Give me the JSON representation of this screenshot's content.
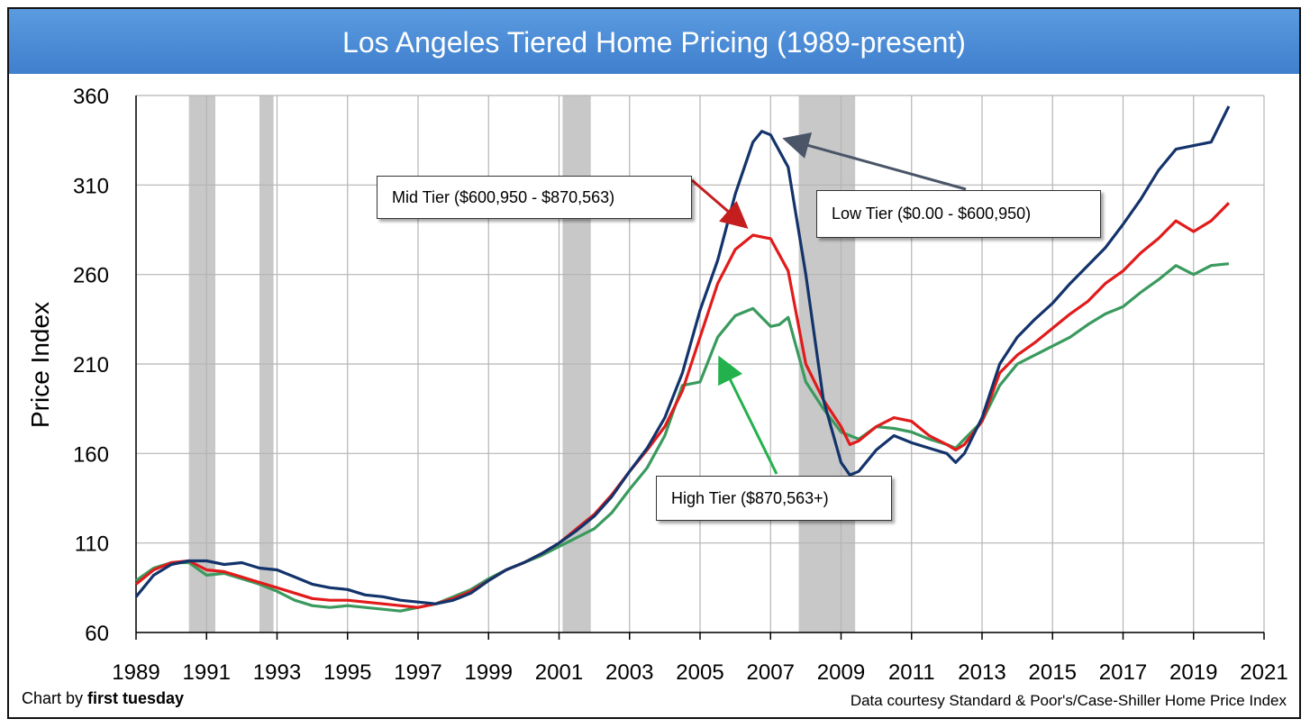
{
  "title": "Los Angeles Tiered Home Pricing (1989-present)",
  "footer": {
    "credit_prefix": "Chart by ",
    "credit_name": "first tuesday",
    "source": "Data courtesy Standard & Poor's/Case-Shiller Home Price Index"
  },
  "chart_data": {
    "type": "line",
    "title": "Los Angeles Tiered Home Pricing (1989-present)",
    "xlabel": "",
    "ylabel": "Price Index",
    "xlim": [
      1989,
      2021
    ],
    "ylim": [
      60,
      360
    ],
    "xticks": [
      "1989",
      "1991",
      "1993",
      "1995",
      "1997",
      "1999",
      "2001",
      "2003",
      "2005",
      "2007",
      "2009",
      "2011",
      "2013",
      "2015",
      "2017",
      "2019",
      "2021"
    ],
    "yticks": [
      "60",
      "110",
      "160",
      "210",
      "260",
      "310",
      "360"
    ],
    "grid": true,
    "recessions": [
      [
        1990.5,
        1991.25
      ],
      [
        1992.5,
        1992.9
      ],
      [
        2001.1,
        2001.9
      ],
      [
        2007.8,
        2009.4
      ]
    ],
    "series": [
      {
        "name": "Low Tier ($0.00 - $600,950)",
        "color": "#13336b",
        "x": [
          1989,
          1989.5,
          1990,
          1990.5,
          1991,
          1991.5,
          1992,
          1992.5,
          1993,
          1993.5,
          1994,
          1994.5,
          1995,
          1995.5,
          1996,
          1996.5,
          1997,
          1997.5,
          1998,
          1998.5,
          1999,
          1999.5,
          2000,
          2000.5,
          2001,
          2001.5,
          2002,
          2002.5,
          2003,
          2003.5,
          2004,
          2004.5,
          2005,
          2005.5,
          2006,
          2006.5,
          2006.75,
          2007,
          2007.5,
          2008,
          2008.5,
          2009,
          2009.25,
          2009.5,
          2010,
          2010.5,
          2011,
          2011.5,
          2012,
          2012.25,
          2012.5,
          2013,
          2013.5,
          2014,
          2014.5,
          2015,
          2015.5,
          2016,
          2016.5,
          2017,
          2017.5,
          2018,
          2018.5,
          2019,
          2019.5,
          2020
        ],
        "values": [
          80,
          92,
          98,
          100,
          100,
          98,
          99,
          96,
          95,
          91,
          87,
          85,
          84,
          81,
          80,
          78,
          77,
          76,
          78,
          82,
          89,
          95,
          99,
          104,
          110,
          117,
          125,
          136,
          150,
          163,
          180,
          205,
          240,
          268,
          305,
          334,
          340,
          338,
          320,
          260,
          190,
          155,
          148,
          150,
          162,
          170,
          166,
          163,
          160,
          155,
          160,
          180,
          210,
          225,
          235,
          244,
          255,
          265,
          275,
          288,
          302,
          318,
          330,
          332,
          334,
          354
        ]
      },
      {
        "name": "Mid Tier ($600,950 - $870,563)",
        "color": "#e11b1b",
        "x": [
          1989,
          1989.5,
          1990,
          1990.5,
          1991,
          1991.5,
          1992,
          1992.5,
          1993,
          1993.5,
          1994,
          1994.5,
          1995,
          1995.5,
          1996,
          1996.5,
          1997,
          1997.5,
          1998,
          1998.5,
          1999,
          1999.5,
          2000,
          2000.5,
          2001,
          2001.5,
          2002,
          2002.5,
          2003,
          2003.5,
          2004,
          2004.5,
          2005,
          2005.5,
          2006,
          2006.5,
          2007,
          2007.5,
          2008,
          2008.5,
          2009,
          2009.25,
          2009.5,
          2010,
          2010.5,
          2011,
          2011.5,
          2012,
          2012.25,
          2012.5,
          2013,
          2013.5,
          2014,
          2014.5,
          2015,
          2015.5,
          2016,
          2016.5,
          2017,
          2017.5,
          2018,
          2018.5,
          2019,
          2019.5,
          2020
        ],
        "values": [
          87,
          95,
          99,
          100,
          95,
          94,
          91,
          88,
          85,
          82,
          79,
          78,
          78,
          77,
          76,
          75,
          74,
          76,
          79,
          83,
          89,
          95,
          99,
          104,
          110,
          118,
          126,
          137,
          150,
          162,
          175,
          195,
          225,
          255,
          274,
          282,
          280,
          262,
          210,
          190,
          175,
          165,
          167,
          175,
          180,
          178,
          170,
          165,
          162,
          165,
          178,
          205,
          215,
          222,
          230,
          238,
          245,
          255,
          262,
          272,
          280,
          290,
          284,
          290,
          300
        ]
      },
      {
        "name": "High Tier ($870,563+)",
        "color": "#3a9a5e",
        "x": [
          1989,
          1989.5,
          1990,
          1990.5,
          1991,
          1991.5,
          1992,
          1992.5,
          1993,
          1993.5,
          1994,
          1994.5,
          1995,
          1995.5,
          1996,
          1996.5,
          1997,
          1997.5,
          1998,
          1998.5,
          1999,
          1999.5,
          2000,
          2000.5,
          2001,
          2001.5,
          2002,
          2002.5,
          2003,
          2003.5,
          2004,
          2004.5,
          2005,
          2005.5,
          2006,
          2006.5,
          2007,
          2007.25,
          2007.5,
          2008,
          2008.5,
          2009,
          2009.5,
          2010,
          2010.5,
          2011,
          2011.5,
          2012,
          2012.25,
          2012.5,
          2013,
          2013.5,
          2014,
          2014.5,
          2015,
          2015.5,
          2016,
          2016.5,
          2017,
          2017.5,
          2018,
          2018.5,
          2019,
          2019.5,
          2020
        ],
        "values": [
          89,
          96,
          99,
          99,
          92,
          93,
          90,
          87,
          83,
          78,
          75,
          74,
          75,
          74,
          73,
          72,
          74,
          76,
          80,
          84,
          90,
          95,
          99,
          103,
          108,
          113,
          118,
          127,
          140,
          152,
          170,
          198,
          200,
          225,
          237,
          241,
          231,
          232,
          236,
          200,
          185,
          172,
          168,
          175,
          174,
          172,
          168,
          165,
          163,
          168,
          178,
          198,
          210,
          215,
          220,
          225,
          232,
          238,
          242,
          250,
          257,
          265,
          260,
          265,
          266
        ]
      }
    ],
    "annotations": [
      "Mid Tier ($600,950 - $870,563)",
      "Low Tier ($0.00 - $600,950)",
      "High Tier ($870,563+)"
    ]
  }
}
